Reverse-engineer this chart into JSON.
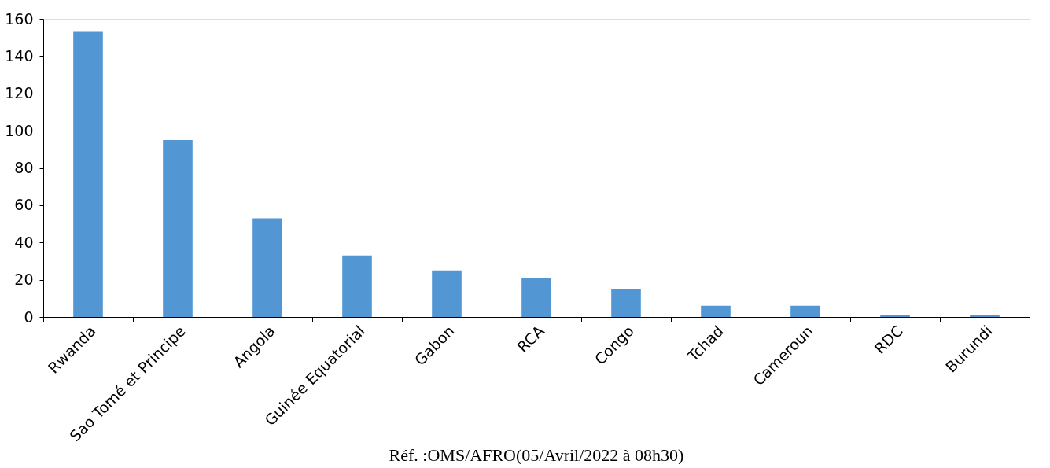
{
  "chart_data": {
    "type": "bar",
    "categories": [
      "Rwanda",
      "Sao Tomé et Principe",
      "Angola",
      "Guinée Equatorial",
      "Gabon",
      "RCA",
      "Congo",
      "Tchad",
      "Cameroun",
      "RDC",
      "Burundi"
    ],
    "values": [
      153,
      95,
      53,
      33,
      25,
      21,
      15,
      6,
      6,
      1,
      1
    ],
    "color": "#5297d3",
    "ylim": [
      0,
      160
    ],
    "yticks": [
      0,
      20,
      40,
      60,
      80,
      100,
      120,
      140,
      160
    ],
    "grid": false,
    "annotations": [
      "Réf. :OMS/AFRO(05/Avril/2022 à 08h30)"
    ]
  }
}
